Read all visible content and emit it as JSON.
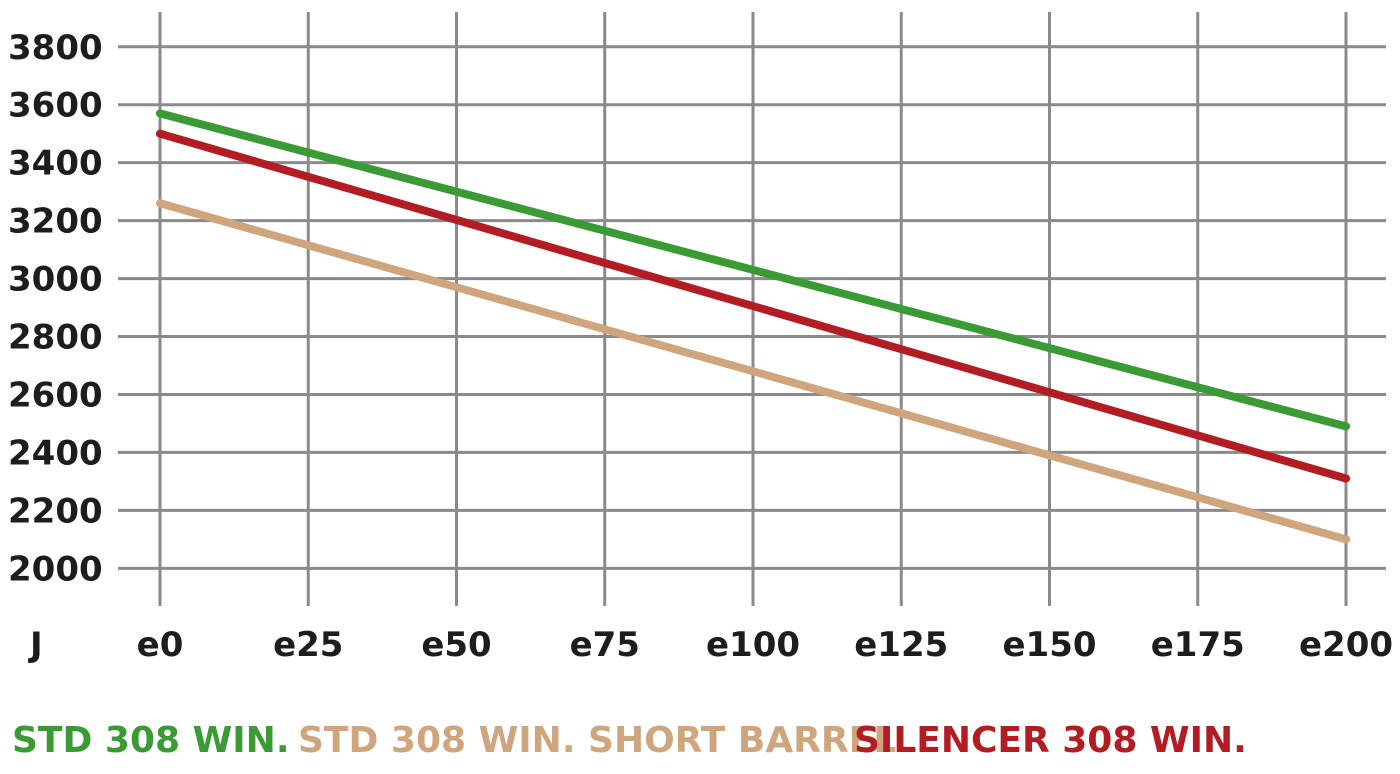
{
  "chart_data": {
    "type": "line",
    "title": "",
    "xlabel": "",
    "ylabel": "J",
    "x_categories": [
      "e0",
      "e25",
      "e50",
      "e75",
      "e100",
      "e125",
      "e150",
      "e175",
      "e200"
    ],
    "yticks": [
      2000,
      2200,
      2400,
      2600,
      2800,
      3000,
      3200,
      3400,
      3600,
      3800
    ],
    "xlim": [
      0,
      200
    ],
    "ylim": [
      1870,
      3920
    ],
    "grid": true,
    "legend_position": "bottom",
    "series": [
      {
        "name": "STD 308 WIN.",
        "color": "#3a9a34",
        "x": [
          0,
          200
        ],
        "y": [
          3570,
          2490
        ]
      },
      {
        "name": "STD 308 WIN. SHORT BARREL",
        "color": "#cfa57e",
        "x": [
          0,
          200
        ],
        "y": [
          3260,
          2100
        ]
      },
      {
        "name": "SILENCER 308 WIN.",
        "color": "#b11d22",
        "x": [
          0,
          200
        ],
        "y": [
          3500,
          2310
        ]
      }
    ]
  }
}
